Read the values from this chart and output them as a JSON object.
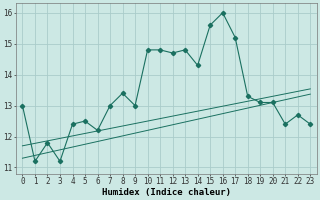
{
  "xlabel": "Humidex (Indice chaleur)",
  "ylabel": "",
  "background_color": "#cce8e4",
  "grid_color": "#aaccca",
  "line_color": "#1a7060",
  "x_values": [
    0,
    1,
    2,
    3,
    4,
    5,
    6,
    7,
    8,
    9,
    10,
    11,
    12,
    13,
    14,
    15,
    16,
    17,
    18,
    19,
    20,
    21,
    22,
    23
  ],
  "main_line": [
    13.0,
    11.2,
    11.8,
    11.2,
    12.4,
    12.5,
    12.2,
    13.0,
    13.4,
    13.0,
    14.8,
    14.8,
    14.7,
    14.8,
    14.3,
    15.6,
    16.0,
    15.2,
    13.3,
    13.1,
    13.1,
    12.4,
    12.7,
    12.4
  ],
  "trend_line1": [
    11.7,
    11.78,
    11.86,
    11.94,
    12.02,
    12.1,
    12.18,
    12.26,
    12.34,
    12.42,
    12.5,
    12.58,
    12.66,
    12.74,
    12.82,
    12.9,
    12.98,
    13.06,
    13.14,
    13.22,
    13.3,
    13.38,
    13.46,
    13.54
  ],
  "trend_line2": [
    11.3,
    11.39,
    11.48,
    11.57,
    11.66,
    11.75,
    11.84,
    11.93,
    12.02,
    12.11,
    12.2,
    12.29,
    12.38,
    12.47,
    12.56,
    12.65,
    12.74,
    12.83,
    12.92,
    13.01,
    13.1,
    13.19,
    13.28,
    13.37
  ],
  "ylim": [
    10.8,
    16.3
  ],
  "yticks": [
    11,
    12,
    13,
    14,
    15,
    16
  ],
  "xlim": [
    -0.5,
    23.5
  ],
  "tick_fontsize": 5.5,
  "xlabel_fontsize": 6.5
}
